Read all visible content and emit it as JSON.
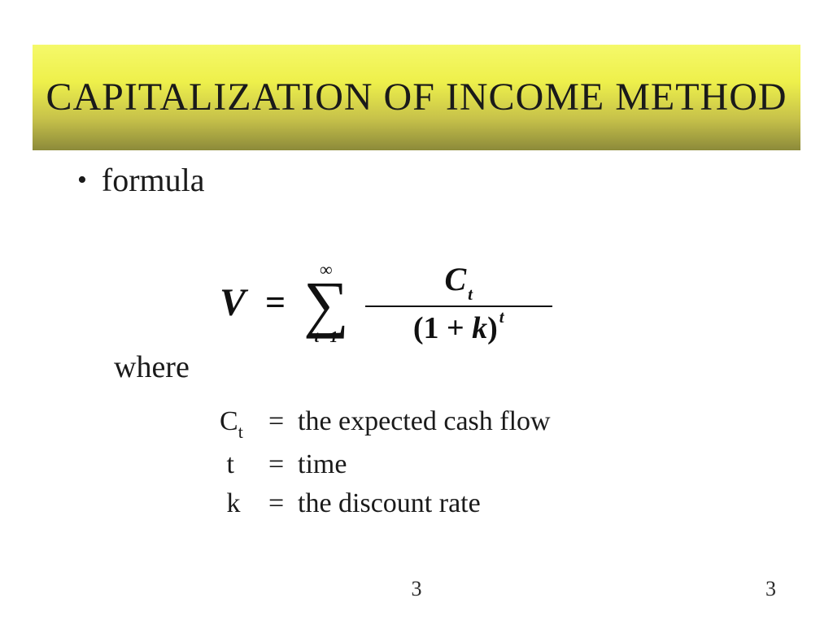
{
  "slide": {
    "title": "CAPITALIZATION OF INCOME METHOD",
    "title_bar": {
      "gradient_colors": [
        "#f5f96a",
        "#eef04b",
        "#c7c24a",
        "#8c8a3a"
      ],
      "text_color": "#1a1a1a",
      "font_size_pt": 36
    },
    "bullet": {
      "label": "formula",
      "font_size_pt": 30
    },
    "formula": {
      "type": "equation",
      "lhs": "V",
      "sum_upper": "∞",
      "sum_lower_var": "t",
      "sum_lower_from": "1",
      "numerator_symbol": "C",
      "numerator_sub": "t",
      "denominator_base_open": "(1 + ",
      "denominator_var": "k",
      "denominator_base_close": ")",
      "denominator_exp": "t",
      "font_family": "Times New Roman",
      "font_style": "italic-bold",
      "color": "#111111"
    },
    "where_label": "where",
    "definitions": [
      {
        "symbol": "C",
        "sub": "t",
        "text": "the expected cash flow"
      },
      {
        "symbol": "t",
        "sub": "",
        "text": "time"
      },
      {
        "symbol": "k",
        "sub": "",
        "text": "the discount rate"
      }
    ],
    "definitions_font_size_pt": 26,
    "page_number_center": "3",
    "page_number_right": "3",
    "background_color": "#ffffff"
  }
}
